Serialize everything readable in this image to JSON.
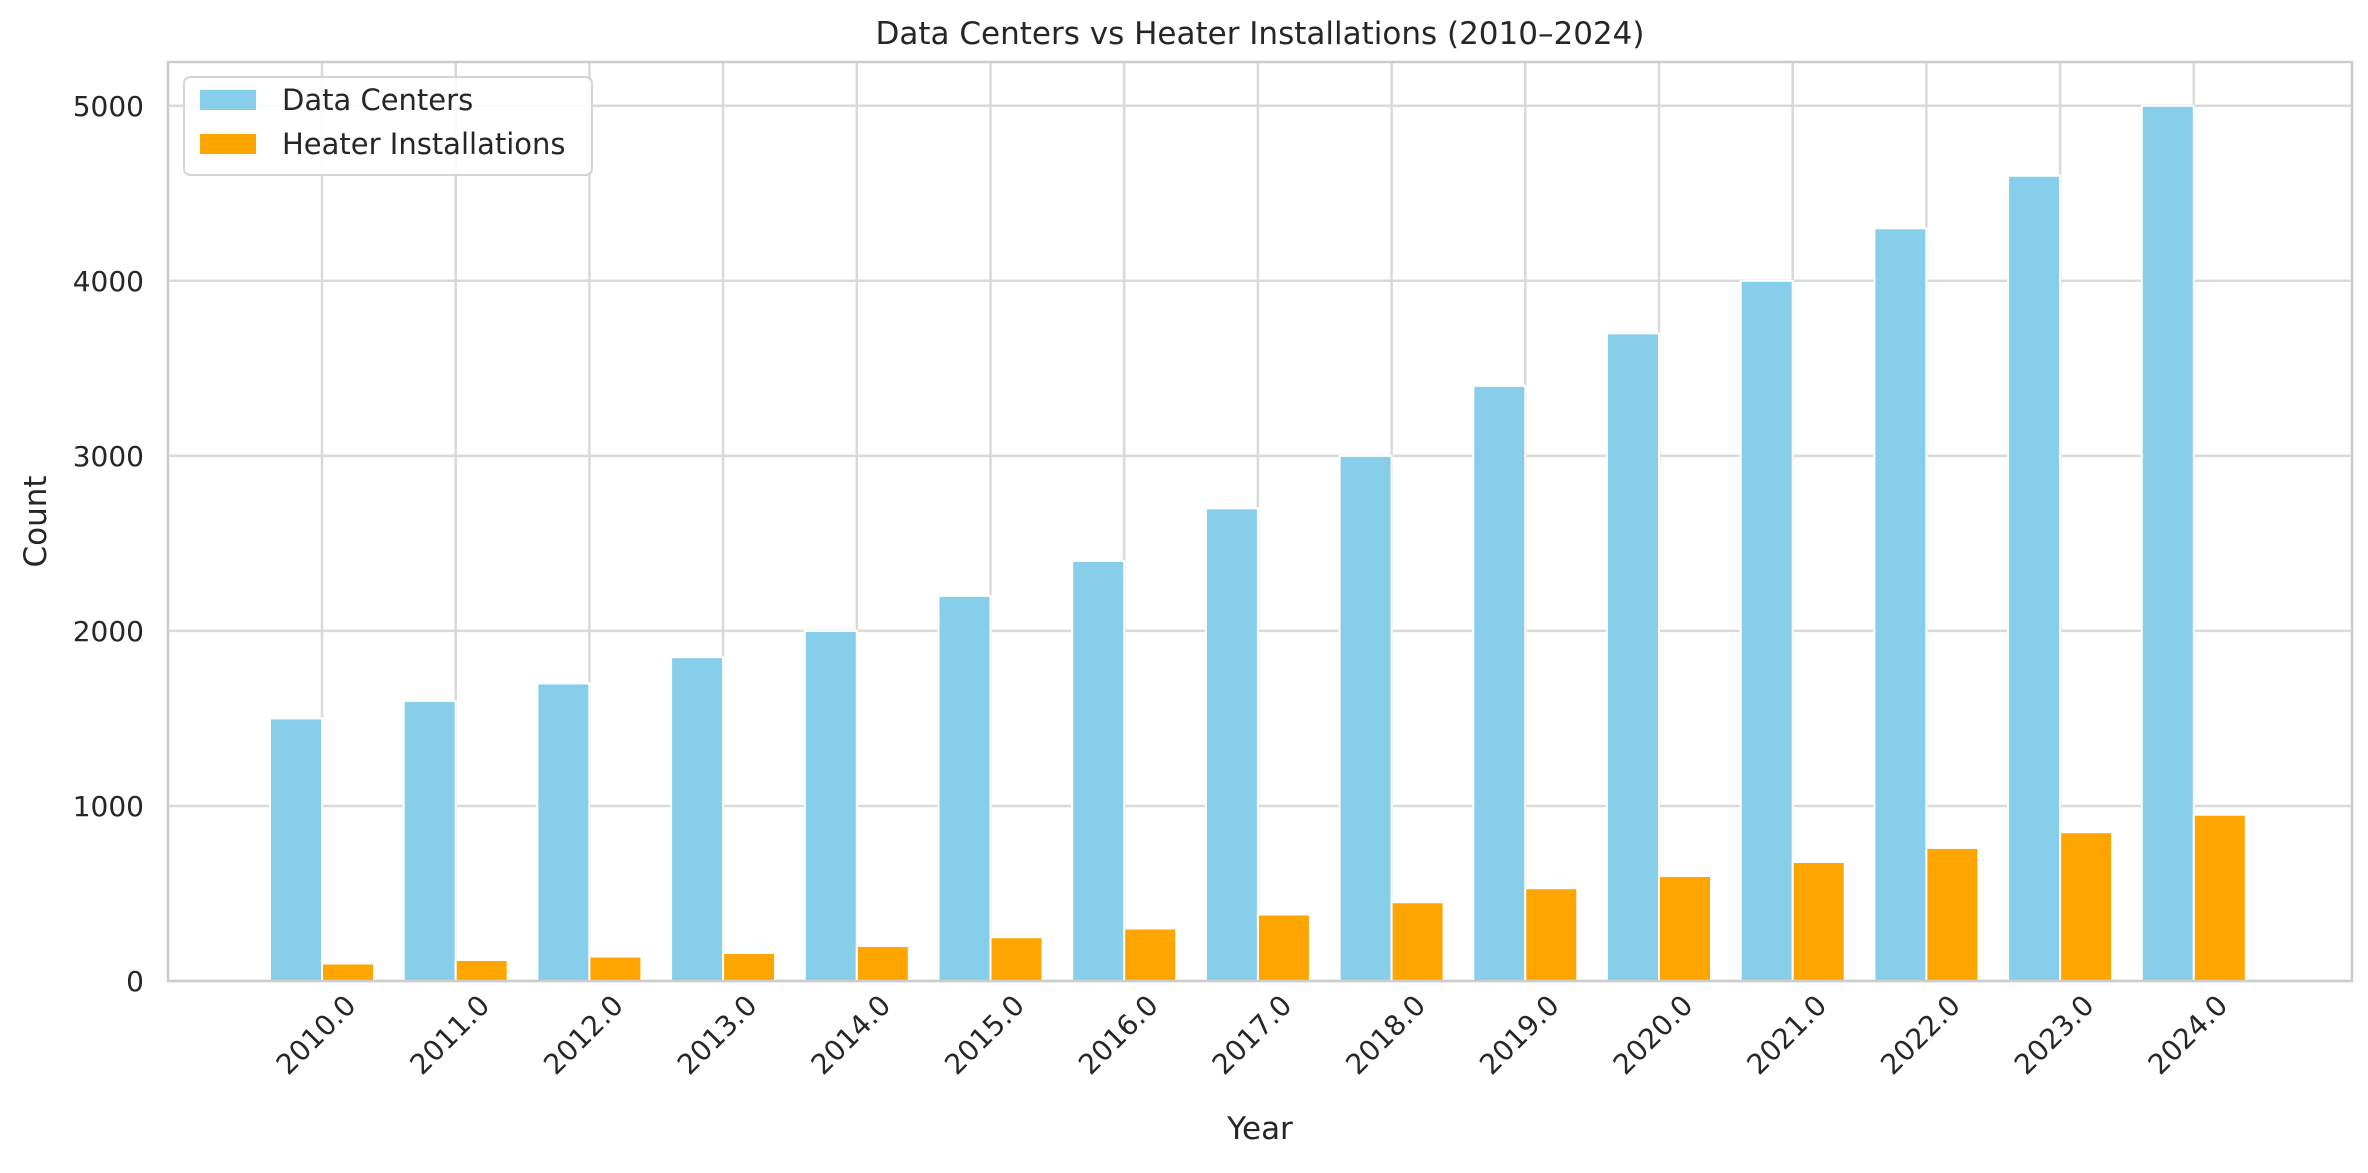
{
  "chart_data": {
    "type": "bar",
    "title": "Data Centers vs Heater Installations (2010–2024)",
    "xlabel": "Year",
    "ylabel": "Count",
    "categories": [
      "2010.0",
      "2011.0",
      "2012.0",
      "2013.0",
      "2014.0",
      "2015.0",
      "2016.0",
      "2017.0",
      "2018.0",
      "2019.0",
      "2020.0",
      "2021.0",
      "2022.0",
      "2023.0",
      "2024.0"
    ],
    "series": [
      {
        "name": "Data Centers",
        "color": "#87CEEB",
        "values": [
          1500,
          1600,
          1700,
          1850,
          2000,
          2200,
          2400,
          2700,
          3000,
          3400,
          3700,
          4000,
          4300,
          4600,
          5000
        ]
      },
      {
        "name": "Heater Installations",
        "color": "#FFA500",
        "values": [
          100,
          120,
          140,
          160,
          200,
          250,
          300,
          380,
          450,
          530,
          600,
          680,
          760,
          850,
          950
        ]
      }
    ],
    "ylim": [
      0,
      5250
    ],
    "yticks": [
      0,
      1000,
      2000,
      3000,
      4000,
      5000
    ],
    "grid": true,
    "legend_position": "top-left"
  }
}
